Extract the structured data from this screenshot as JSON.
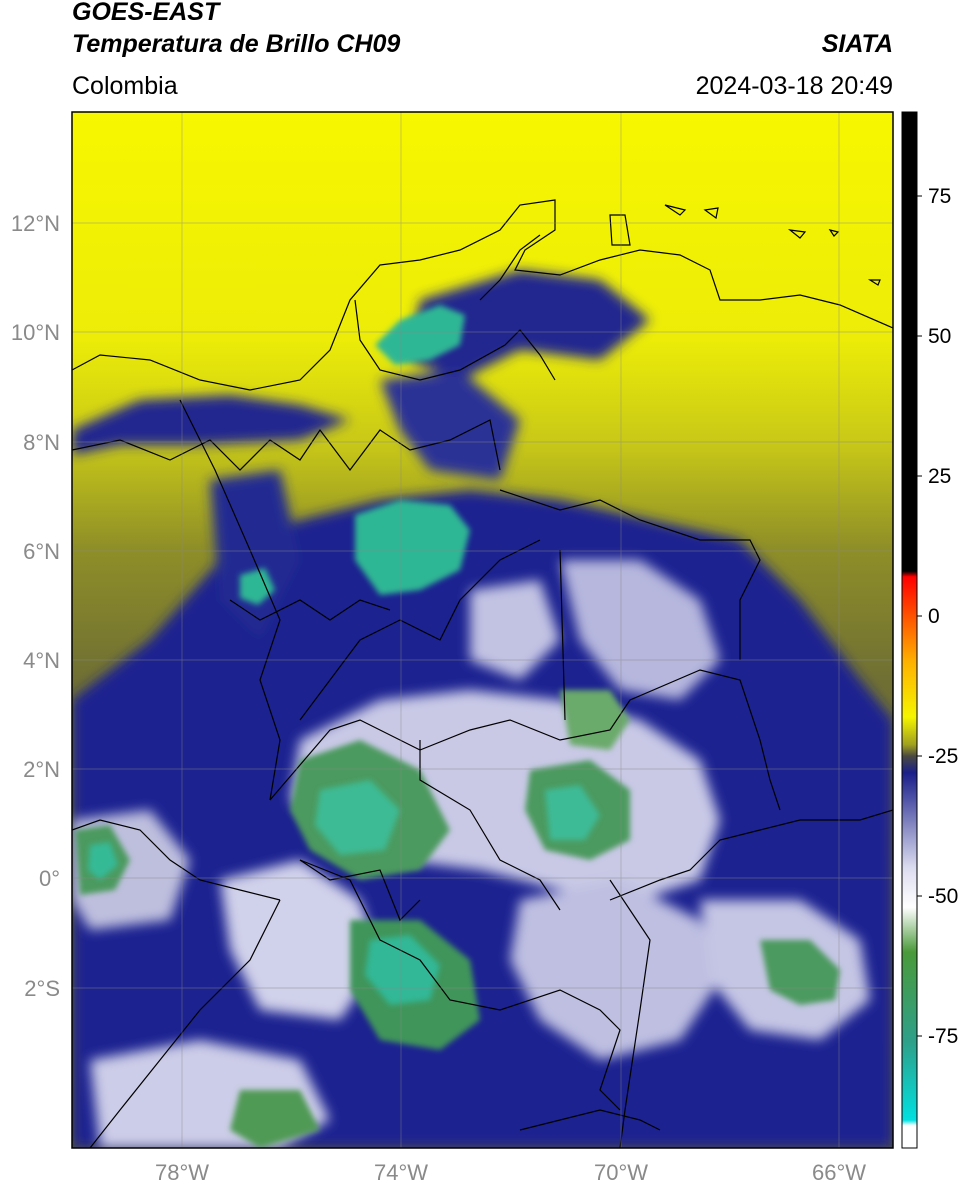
{
  "header": {
    "title_line1": "GOES-EAST",
    "title_line2": "Temperatura de Brillo CH09",
    "brand": "SIATA",
    "region": "Colombia",
    "datetime": "2024-03-18 20:49"
  },
  "map": {
    "lat_ticks": [
      "12°N",
      "10°N",
      "8°N",
      "6°N",
      "4°N",
      "2°N",
      "0°",
      "2°S"
    ],
    "lon_ticks": [
      "78°W",
      "74°W",
      "70°W",
      "66°W"
    ],
    "colors": {
      "warm": "#f5f500",
      "olive": "#8a8a2a",
      "gray_olive": "#6a6a3a",
      "navy": "#1a1f8a",
      "light": "#dfe0f0",
      "green": "#3aa06a",
      "teal": "#2ec2a0"
    }
  },
  "colorbar": {
    "labels": [
      "75",
      "50",
      "25",
      "0",
      "-25",
      "-50",
      "-75"
    ],
    "stops": [
      {
        "value": 90,
        "color": "#000000"
      },
      {
        "value": 8,
        "color": "#000000"
      },
      {
        "value": 7,
        "color": "#ff0000"
      },
      {
        "value": -8,
        "color": "#ffb000"
      },
      {
        "value": -18,
        "color": "#f5f500"
      },
      {
        "value": -23,
        "color": "#a0a020"
      },
      {
        "value": -25,
        "color": "#4a4a40"
      },
      {
        "value": -28,
        "color": "#1a1f8a"
      },
      {
        "value": -45,
        "color": "#dcdcf0"
      },
      {
        "value": -52,
        "color": "#ffffff"
      },
      {
        "value": -60,
        "color": "#4a9a3a"
      },
      {
        "value": -76,
        "color": "#2ea08a"
      },
      {
        "value": -90,
        "color": "#00e0e0"
      },
      {
        "value": -91,
        "color": "#ffffff"
      },
      {
        "value": -95,
        "color": "#ffffff"
      }
    ]
  }
}
